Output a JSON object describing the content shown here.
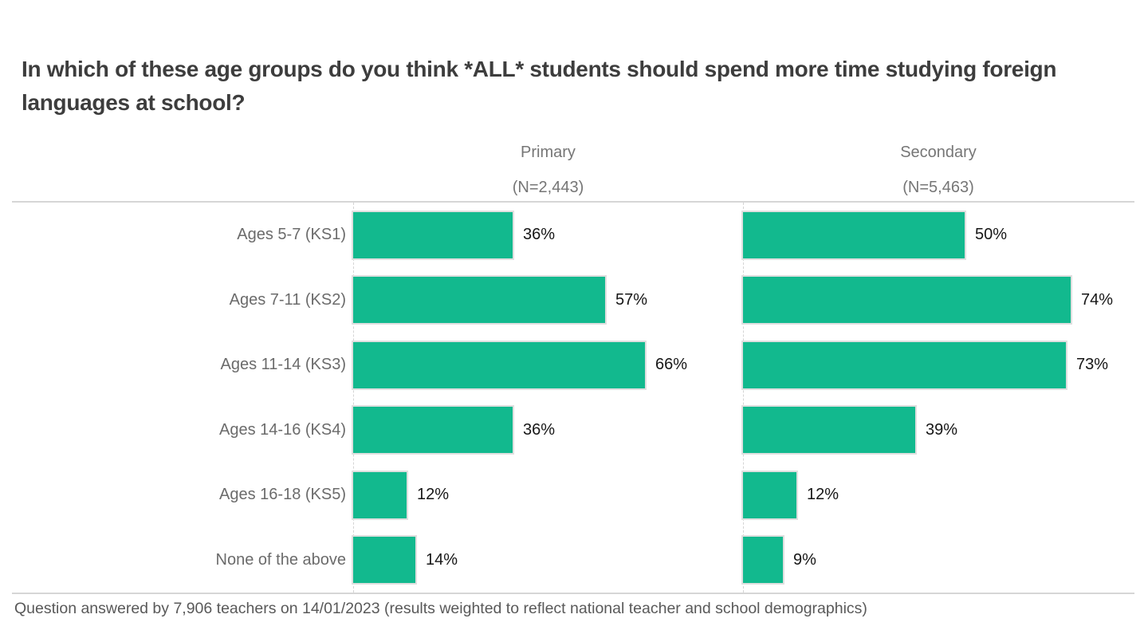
{
  "title": "In which of these age groups do you think *ALL* students should spend more time studying foreign languages at school?",
  "panels": [
    {
      "label": "Primary",
      "n_label": "(N=2,443)"
    },
    {
      "label": "Secondary",
      "n_label": "(N=5,463)"
    }
  ],
  "footnote": "Question answered by 7,906 teachers on 14/01/2023 (results weighted to reflect national teacher and school demographics)",
  "colors": {
    "bar": "#12b98e",
    "bar_outline": "#dfdfdf",
    "title_text": "#3d3d3d",
    "label_text": "#6b6b6b",
    "header_text": "#767676",
    "value_text": "#161616",
    "footnote_text": "#595959",
    "rule_line": "#d6d6d6"
  },
  "chart_data": {
    "type": "bar",
    "orientation": "horizontal",
    "title": "In which of these age groups do you think *ALL* students should spend more time studying foreign languages at school?",
    "categories": [
      "Ages 5-7 (KS1)",
      "Ages 7-11 (KS2)",
      "Ages 11-14 (KS3)",
      "Ages 14-16 (KS4)",
      "Ages 16-18 (KS5)",
      "None of the above"
    ],
    "series": [
      {
        "name": "Primary",
        "n": 2443,
        "values": [
          36,
          57,
          66,
          36,
          12,
          14
        ]
      },
      {
        "name": "Secondary",
        "n": 5463,
        "values": [
          50,
          74,
          73,
          39,
          12,
          9
        ]
      }
    ],
    "value_suffix": "%",
    "xlim": [
      0,
      88
    ],
    "grid": false,
    "legend_position": "column-headers",
    "xlabel": "",
    "ylabel": ""
  }
}
